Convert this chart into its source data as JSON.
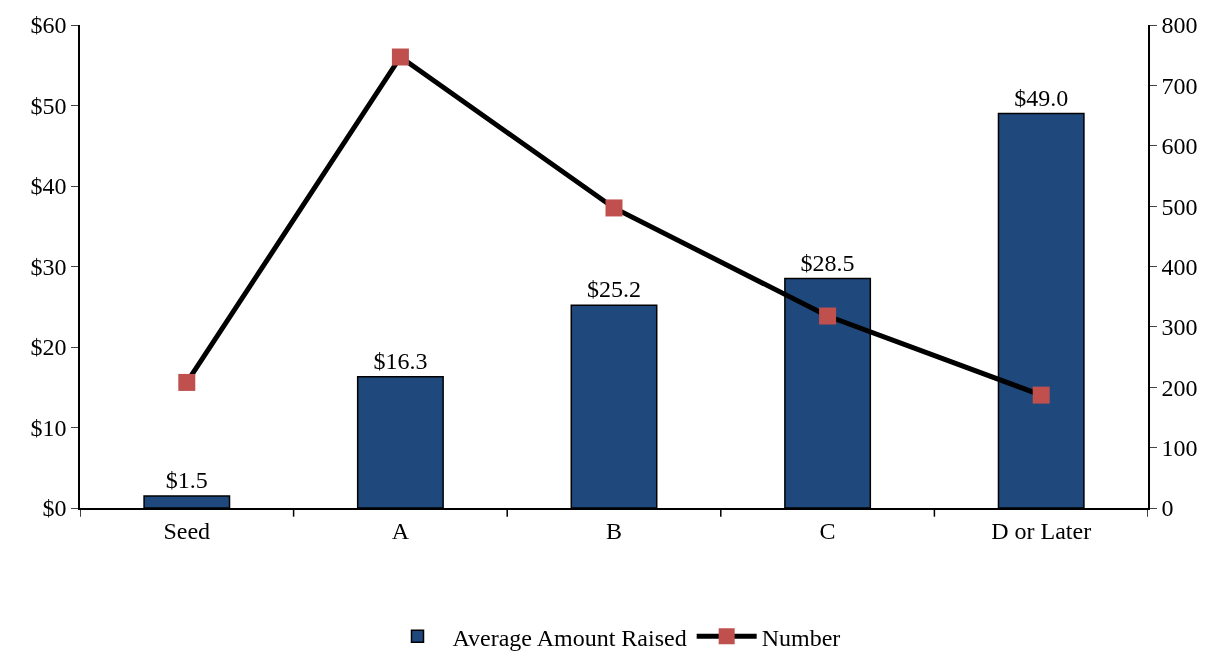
{
  "chart_data": {
    "type": "bar",
    "categories": [
      "Seed",
      "A",
      "B",
      "C",
      "D or Later"
    ],
    "series": [
      {
        "name": "Average Amount Raised",
        "color": "#1f497d",
        "values": [
          1.5,
          16.3,
          25.2,
          28.5,
          49.0
        ],
        "value_labels": [
          "$1.5",
          "$16.3",
          "$25.2",
          "$28.5",
          "$49.0"
        ]
      },
      {
        "name": "Number",
        "type": "line",
        "axis": "y2",
        "color": "#000000",
        "colors": [
          "#c0504d",
          "#c0504d",
          "#c0504d",
          "#c0504d",
          "#c0504d"
        ],
        "marker": "square",
        "values": [
          208,
          747,
          497,
          318,
          187
        ]
      }
    ],
    "ylim": [
      0,
      60
    ],
    "yticks": [
      {
        "value": 0,
        "label": "$0"
      },
      {
        "value": 10,
        "label": "$10"
      },
      {
        "value": 20,
        "label": "$20"
      },
      {
        "value": 30,
        "label": "$30"
      },
      {
        "value": 40,
        "label": "$40"
      },
      {
        "value": 50,
        "label": "$50"
      },
      {
        "value": 60,
        "label": "$60"
      }
    ],
    "y2lim": [
      0,
      800
    ],
    "y2ticks": [
      0,
      100,
      200,
      300,
      400,
      500,
      600,
      700,
      800
    ],
    "legend": "bottom"
  }
}
